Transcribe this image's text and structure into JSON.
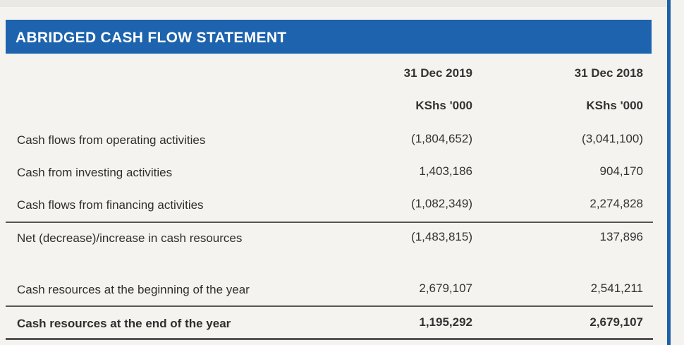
{
  "title": "ABRIDGED CASH FLOW STATEMENT",
  "columns": [
    {
      "date": "31 Dec 2019",
      "unit": "KShs '000"
    },
    {
      "date": "31 Dec 2018",
      "unit": "KShs '000"
    }
  ],
  "rows": [
    {
      "label": "Cash flows from operating activities",
      "v2019": "(1,804,652)",
      "v2018": "(3,041,100)"
    },
    {
      "label": "Cash from investing activities",
      "v2019": "1,403,186",
      "v2018": "904,170"
    },
    {
      "label": "Cash flows from financing activities",
      "v2019": "(1,082,349)",
      "v2018": "2,274,828"
    },
    {
      "label": "Net (decrease)/increase in cash resources",
      "v2019": "(1,483,815)",
      "v2018": "137,896"
    },
    {
      "label": "Cash resources at the beginning of the year",
      "v2019": "2,679,107",
      "v2018": "2,541,211"
    },
    {
      "label": "Cash resources at the end of the year",
      "v2019": "1,195,292",
      "v2018": "2,679,107"
    }
  ]
}
